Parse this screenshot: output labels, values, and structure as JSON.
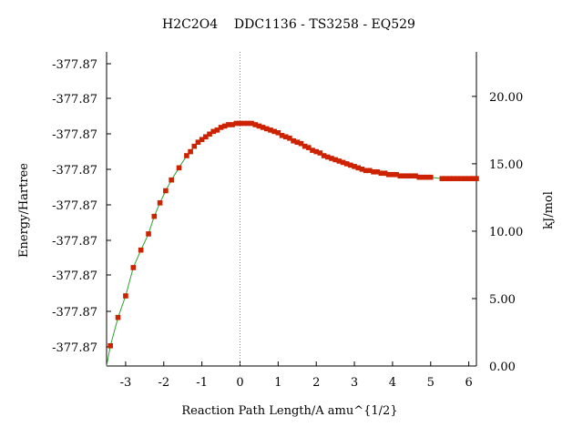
{
  "chart_data": {
    "type": "line",
    "title": "H2C2O4    DDC1136 - TS3258 - EQ529",
    "xlabel": "Reaction Path Length/A amu^{1/2}",
    "ylabel_left": "Energy/Hartree",
    "ylabel_right": "kJ/mol",
    "xlim": [
      -3.5,
      6.2
    ],
    "ylim_right": [
      0.0,
      23.3
    ],
    "x_ticks": [
      -3,
      -2,
      -1,
      0,
      1,
      2,
      3,
      4,
      5,
      6
    ],
    "x_tick_labels": [
      "-3",
      "-2",
      "-1",
      "0",
      "1",
      "2",
      "3",
      "4",
      "5",
      "6"
    ],
    "left_tick_labels": [
      "-377.87",
      "-377.87",
      "-377.87",
      "-377.87",
      "-377.87",
      "-377.87",
      "-377.87",
      "-377.87",
      "-377.87"
    ],
    "left_tick_values": [
      22.7,
      19.2,
      15.6,
      12.1,
      8.5,
      5.0,
      1.45
    ],
    "left_ticks_extra": [
      1.45,
      5.0,
      8.5,
      12.1,
      15.6,
      19.2,
      22.7,
      26.2,
      29.8
    ],
    "right_ticks": [
      0.0,
      5.0,
      10.0,
      15.0,
      20.0
    ],
    "right_tick_labels": [
      "0.00",
      "5.00",
      "10.00",
      "15.00",
      "20.00"
    ],
    "ts_marker_x": 0,
    "grid": false,
    "line_color": "#2ca02c",
    "marker_color": "#cc2200",
    "points_x": [
      -3.4,
      -3.2,
      -3.0,
      -2.8,
      -2.6,
      -2.4,
      -2.25,
      -2.1,
      -1.95,
      -1.8,
      -1.6,
      -1.4,
      -1.3,
      -1.2,
      -1.1,
      -1.0,
      -0.9,
      -0.8,
      -0.7,
      -0.6,
      -0.5,
      -0.4,
      -0.3,
      -0.2,
      -0.1,
      0.0,
      0.1,
      0.2,
      0.3,
      0.4,
      0.5,
      0.6,
      0.7,
      0.8,
      0.9,
      1.0,
      1.1,
      1.2,
      1.3,
      1.4,
      1.5,
      1.6,
      1.7,
      1.8,
      1.9,
      2.0,
      2.1,
      2.2,
      2.3,
      2.4,
      2.5,
      2.6,
      2.7,
      2.8,
      2.9,
      3.0,
      3.1,
      3.2,
      3.3,
      3.4,
      3.5,
      3.6,
      3.7,
      3.8,
      3.9,
      4.0,
      4.1,
      4.2,
      4.3,
      4.4,
      4.5,
      4.6,
      4.7,
      4.8,
      4.9,
      5.0,
      5.3,
      5.4,
      5.5,
      5.6,
      5.7,
      5.8,
      5.9,
      6.0,
      6.1,
      6.2
    ],
    "points_y": [
      1.5,
      3.6,
      5.2,
      7.3,
      8.6,
      9.8,
      11.1,
      12.1,
      13.0,
      13.8,
      14.7,
      15.6,
      15.9,
      16.3,
      16.6,
      16.8,
      17.0,
      17.2,
      17.4,
      17.5,
      17.7,
      17.8,
      17.9,
      17.9,
      18.0,
      18.0,
      18.0,
      18.0,
      18.0,
      17.9,
      17.8,
      17.7,
      17.6,
      17.5,
      17.4,
      17.3,
      17.1,
      17.0,
      16.9,
      16.7,
      16.6,
      16.5,
      16.3,
      16.2,
      16.0,
      15.9,
      15.8,
      15.6,
      15.5,
      15.4,
      15.3,
      15.2,
      15.1,
      15.0,
      14.9,
      14.8,
      14.7,
      14.6,
      14.5,
      14.5,
      14.4,
      14.4,
      14.3,
      14.3,
      14.2,
      14.2,
      14.2,
      14.1,
      14.1,
      14.1,
      14.1,
      14.1,
      14.0,
      14.0,
      14.0,
      14.0,
      13.9,
      13.9,
      13.9,
      13.9,
      13.9,
      13.9,
      13.9,
      13.9,
      13.9,
      13.9
    ]
  }
}
